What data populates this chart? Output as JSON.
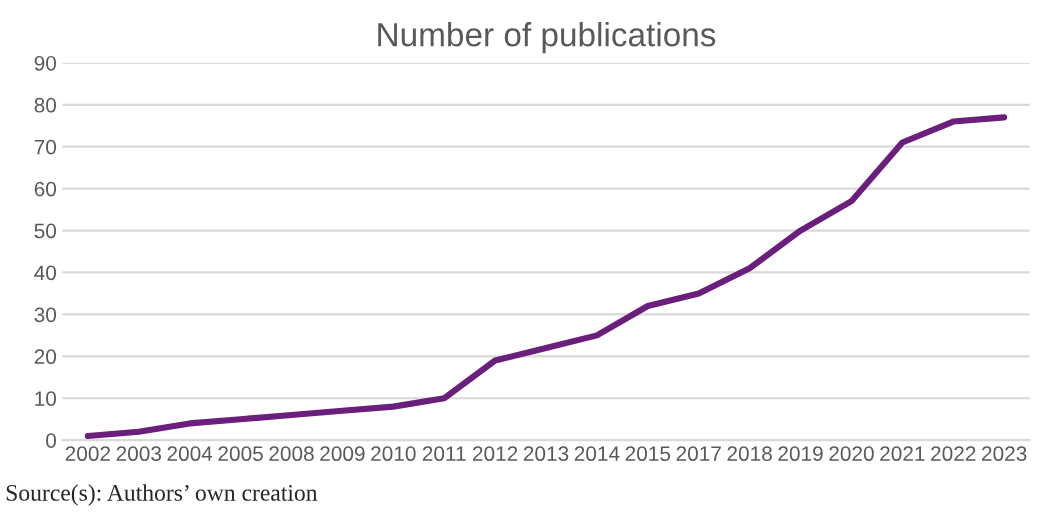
{
  "chart_data": {
    "type": "line",
    "title": "Number of publications",
    "categories": [
      "2002",
      "2003",
      "2004",
      "2005",
      "2008",
      "2009",
      "2010",
      "2011",
      "2012",
      "2013",
      "2014",
      "2015",
      "2017",
      "2018",
      "2019",
      "2020",
      "2021",
      "2022",
      "2023"
    ],
    "series": [
      {
        "color": "#6b1f7c",
        "values": [
          1,
          2,
          4,
          5,
          6,
          7,
          8,
          10,
          19,
          22,
          25,
          32,
          35,
          41,
          50,
          57,
          71,
          76,
          77
        ]
      }
    ],
    "ylim": [
      0,
      90
    ],
    "yticks": [
      0,
      10,
      20,
      30,
      40,
      50,
      60,
      70,
      80,
      90
    ],
    "grid": "y",
    "annotations": [
      "Source(s): Authors’ own creation"
    ]
  }
}
